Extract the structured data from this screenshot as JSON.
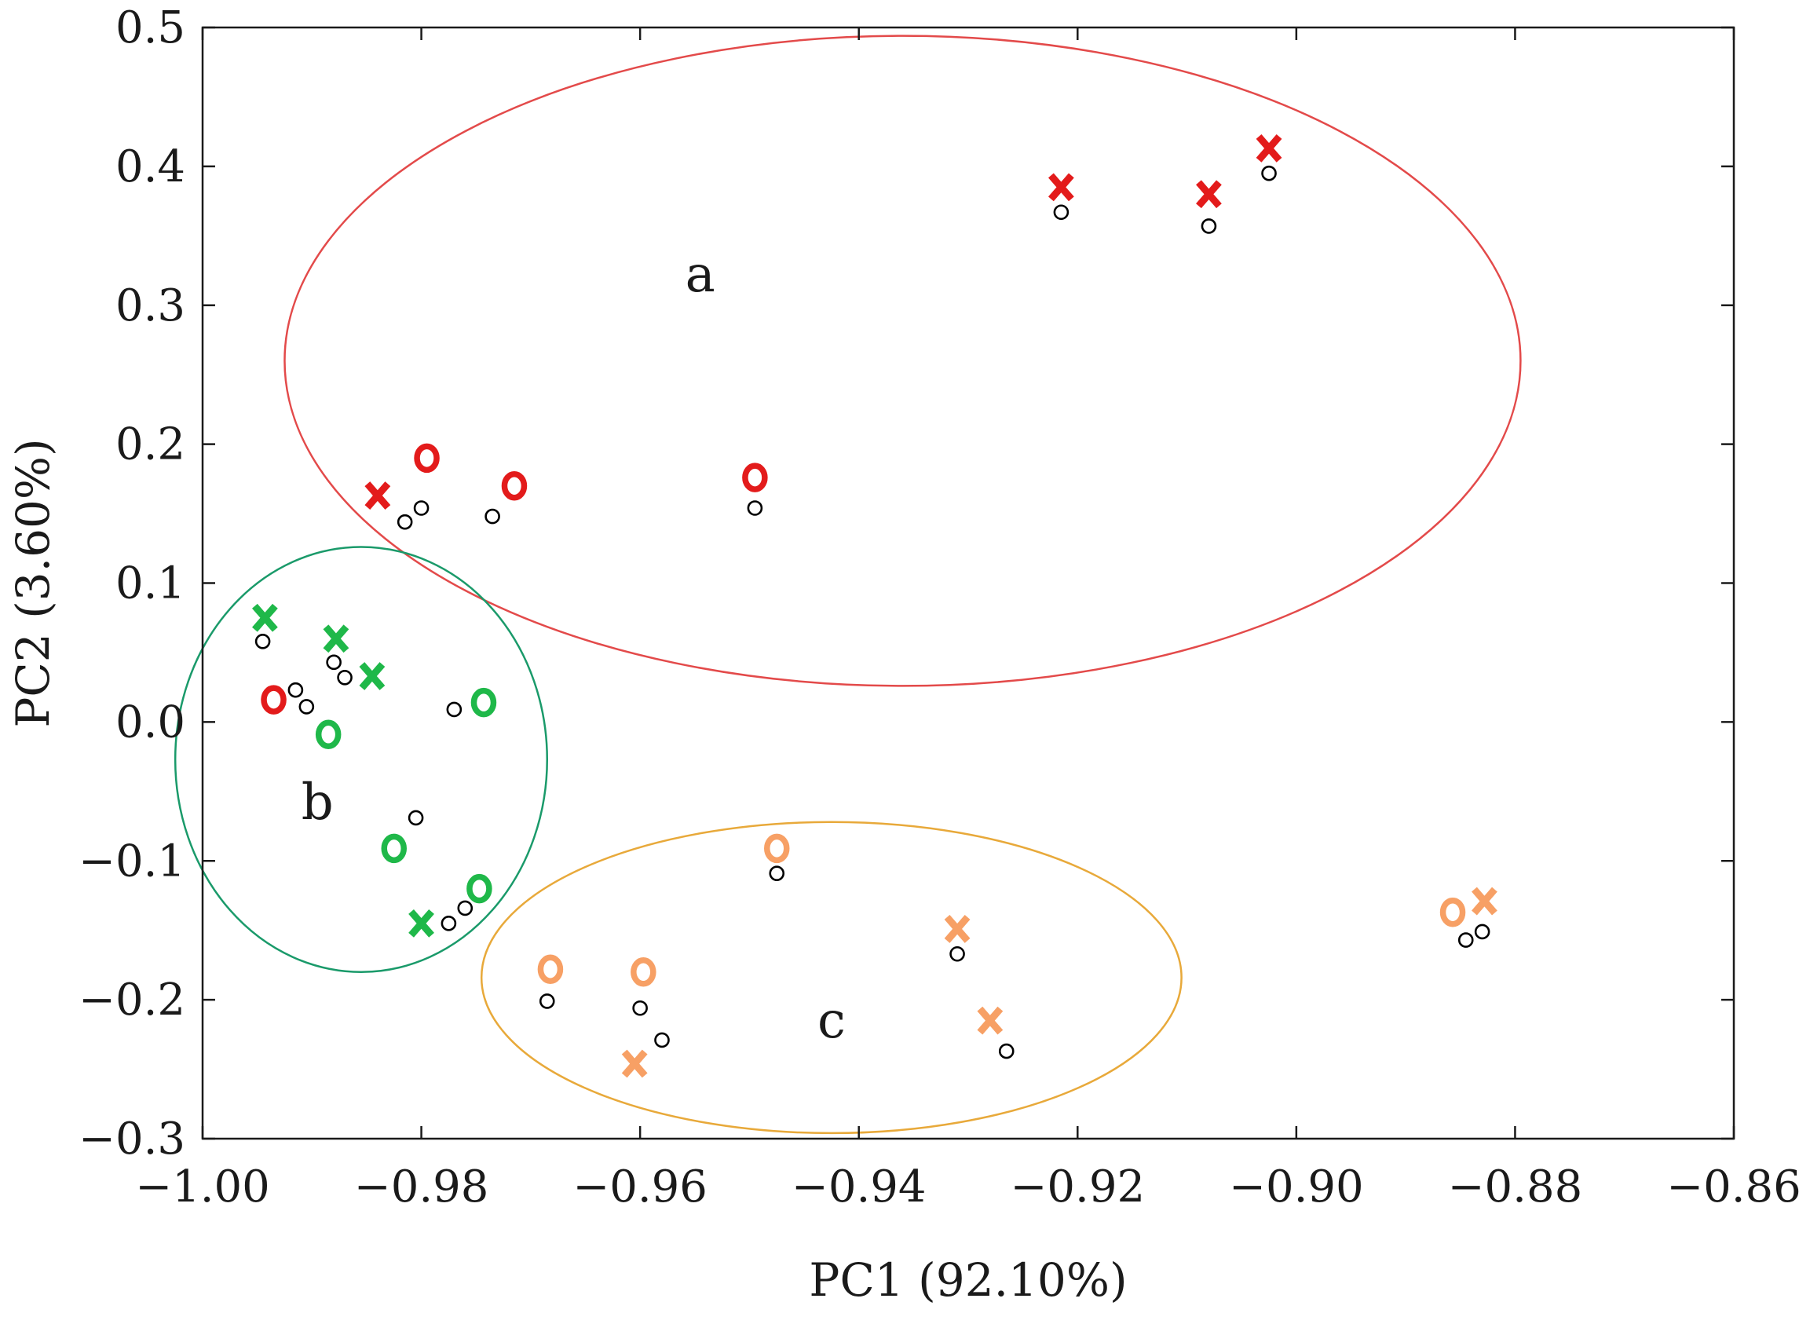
{
  "chart_data": {
    "type": "scatter",
    "xlabel": "PC1 (92.10%)",
    "ylabel": "PC2 (3.60%)",
    "xlim": [
      -1.0,
      -0.86
    ],
    "ylim": [
      -0.3,
      0.5
    ],
    "x_ticks": [
      -1.0,
      -0.98,
      -0.96,
      -0.94,
      -0.92,
      -0.9,
      -0.88,
      -0.86
    ],
    "x_tick_labels": [
      "−1.00",
      "−0.98",
      "−0.96",
      "−0.94",
      "−0.92",
      "−0.90",
      "−0.88",
      "−0.86"
    ],
    "y_ticks": [
      -0.3,
      -0.2,
      -0.1,
      0.0,
      0.1,
      0.2,
      0.3,
      0.4,
      0.5
    ],
    "y_tick_labels": [
      "−0.3",
      "−0.2",
      "−0.1",
      "0.0",
      "0.1",
      "0.2",
      "0.3",
      "0.4",
      "0.5"
    ],
    "grid": false,
    "colors": {
      "red": "#e31b1b",
      "green": "#1fb849",
      "orange": "#f7a065",
      "ellipse_red": "#e34a4a",
      "ellipse_green": "#1a9a6a",
      "ellipse_orange": "#e8a93a",
      "point": "#000000"
    },
    "groups": [
      {
        "label": "a",
        "color": "red",
        "ellipse": {
          "cx": -0.936,
          "cy": 0.26,
          "rx": 0.0565,
          "ry": 0.234
        },
        "label_pos": [
          -0.9545,
          0.31
        ]
      },
      {
        "label": "b",
        "color": "green",
        "ellipse": {
          "cx": -0.9855,
          "cy": -0.027,
          "rx": 0.017,
          "ry": 0.153
        },
        "label_pos": [
          -0.9895,
          -0.07
        ]
      },
      {
        "label": "c",
        "color": "orange",
        "ellipse": {
          "cx": -0.9425,
          "cy": -0.184,
          "rx": 0.032,
          "ry": 0.112
        },
        "label_pos": [
          -0.9425,
          -0.227
        ]
      }
    ],
    "points": [
      {
        "x": -0.9215,
        "y": 0.367,
        "marker": "X",
        "color": "red",
        "mdx": 0.0,
        "mdy": 0.018
      },
      {
        "x": -0.908,
        "y": 0.357,
        "marker": "X",
        "color": "red",
        "mdx": 0.0,
        "mdy": 0.023
      },
      {
        "x": -0.9025,
        "y": 0.395,
        "marker": "X",
        "color": "red",
        "mdx": 0.0,
        "mdy": 0.018
      },
      {
        "x": -0.98,
        "y": 0.154,
        "marker": "O",
        "color": "red",
        "mdx": 0.0005,
        "mdy": 0.036
      },
      {
        "x": -0.9815,
        "y": 0.144,
        "marker": "X",
        "color": "red",
        "mdx": -0.0025,
        "mdy": 0.019
      },
      {
        "x": -0.9735,
        "y": 0.148,
        "marker": "O",
        "color": "red",
        "mdx": 0.002,
        "mdy": 0.022
      },
      {
        "x": -0.9495,
        "y": 0.154,
        "marker": "O",
        "color": "red",
        "mdx": 0.0,
        "mdy": 0.022
      },
      {
        "x": -0.9945,
        "y": 0.058,
        "marker": "X",
        "color": "green",
        "mdx": 0.0002,
        "mdy": 0.017
      },
      {
        "x": -0.988,
        "y": 0.043,
        "marker": "X",
        "color": "green",
        "mdx": 0.0002,
        "mdy": 0.017
      },
      {
        "x": -0.987,
        "y": 0.032,
        "marker": "X",
        "color": "green",
        "mdx": 0.0025,
        "mdy": 0.001
      },
      {
        "x": -0.9915,
        "y": 0.023,
        "marker": "O",
        "color": "red",
        "mdx": -0.002,
        "mdy": -0.007
      },
      {
        "x": -0.9905,
        "y": 0.011,
        "marker": "O",
        "color": "green",
        "mdx": 0.002,
        "mdy": -0.02
      },
      {
        "x": -0.977,
        "y": 0.009,
        "marker": "O",
        "color": "green",
        "mdx": 0.0027,
        "mdy": 0.005
      },
      {
        "x": -0.9805,
        "y": -0.069,
        "marker": "O",
        "color": "green",
        "mdx": -0.002,
        "mdy": -0.022
      },
      {
        "x": -0.9775,
        "y": -0.145,
        "marker": "X",
        "color": "green",
        "mdx": -0.0025,
        "mdy": 0.0
      },
      {
        "x": -0.976,
        "y": -0.134,
        "marker": "O",
        "color": "green",
        "mdx": 0.0013,
        "mdy": 0.014
      },
      {
        "x": -0.9475,
        "y": -0.109,
        "marker": "O",
        "color": "orange",
        "mdx": 0.0,
        "mdy": 0.018
      },
      {
        "x": -0.9685,
        "y": -0.201,
        "marker": "O",
        "color": "orange",
        "mdx": 0.0003,
        "mdy": 0.023
      },
      {
        "x": -0.96,
        "y": -0.206,
        "marker": "O",
        "color": "orange",
        "mdx": 0.0003,
        "mdy": 0.026
      },
      {
        "x": -0.958,
        "y": -0.229,
        "marker": "X",
        "color": "orange",
        "mdx": -0.0025,
        "mdy": -0.017
      },
      {
        "x": -0.931,
        "y": -0.167,
        "marker": "X",
        "color": "orange",
        "mdx": 0.0,
        "mdy": 0.018
      },
      {
        "x": -0.9265,
        "y": -0.237,
        "marker": "X",
        "color": "orange",
        "mdx": -0.0015,
        "mdy": 0.022
      },
      {
        "x": -0.8845,
        "y": -0.157,
        "marker": "O",
        "color": "orange",
        "mdx": -0.0012,
        "mdy": 0.02
      },
      {
        "x": -0.883,
        "y": -0.151,
        "marker": "X",
        "color": "orange",
        "mdx": 0.0002,
        "mdy": 0.022
      }
    ]
  }
}
